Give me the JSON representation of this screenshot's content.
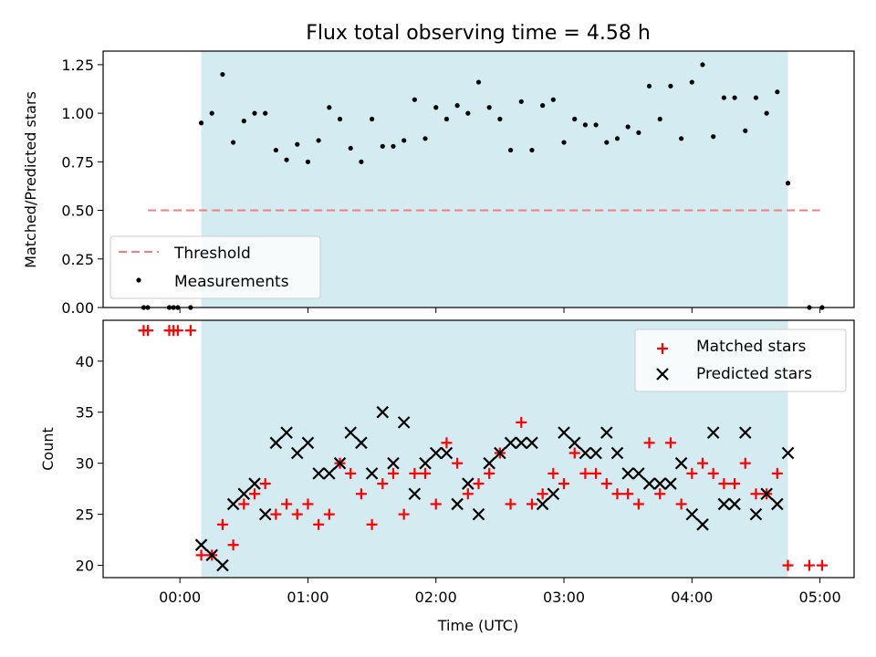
{
  "chart_data": [
    {
      "type": "scatter",
      "title": "Flux total observing time = 4.58 h",
      "xlabel": "",
      "ylabel": "Matched/Predicted stars",
      "xlim_minutes": [
        -36,
        316
      ],
      "ylim": [
        0.0,
        1.32
      ],
      "yticks": [
        0.0,
        0.25,
        0.5,
        0.75,
        1.0,
        1.25
      ],
      "ytick_labels": [
        "0.00",
        "0.25",
        "0.50",
        "0.75",
        "1.00",
        "1.25"
      ],
      "observing_window_minutes": [
        10,
        285
      ],
      "window_color": "#d4ebf1",
      "legend_position": "lower left",
      "threshold": {
        "name": "Threshold",
        "value": 0.5,
        "x_range_minutes": [
          -15,
          300
        ],
        "color": "#f08080",
        "style": "dashed"
      },
      "series": [
        {
          "name": "Measurements",
          "color": "#000000",
          "marker": "dot",
          "x_minutes": [
            -17,
            -15,
            -5,
            -3,
            -1,
            5,
            10,
            15,
            20,
            25,
            30,
            35,
            40,
            45,
            50,
            55,
            60,
            65,
            70,
            75,
            80,
            85,
            90,
            95,
            100,
            105,
            110,
            115,
            120,
            125,
            130,
            135,
            140,
            145,
            150,
            155,
            160,
            165,
            170,
            175,
            180,
            185,
            190,
            195,
            200,
            205,
            210,
            215,
            220,
            225,
            230,
            235,
            240,
            245,
            250,
            255,
            260,
            265,
            270,
            275,
            280,
            285,
            295,
            301
          ],
          "values": [
            0,
            0,
            0,
            0,
            0,
            0,
            0.95,
            1.0,
            1.2,
            0.85,
            0.96,
            1.0,
            1.0,
            0.81,
            0.76,
            0.84,
            0.75,
            0.86,
            1.03,
            0.97,
            0.82,
            0.75,
            0.97,
            0.83,
            0.83,
            0.86,
            1.07,
            0.87,
            1.03,
            0.97,
            1.04,
            1.0,
            1.16,
            1.03,
            0.97,
            0.81,
            1.06,
            0.81,
            1.04,
            1.07,
            0.85,
            0.97,
            0.94,
            0.94,
            0.85,
            0.87,
            0.93,
            0.9,
            1.14,
            0.97,
            1.14,
            0.87,
            1.16,
            1.25,
            0.88,
            1.08,
            1.08,
            0.91,
            1.08,
            1.0,
            1.11,
            0.64,
            0,
            0
          ]
        }
      ]
    },
    {
      "type": "scatter",
      "title": "",
      "xlabel": "Time (UTC)",
      "ylabel": "Count",
      "xlim_minutes": [
        -36,
        316
      ],
      "x_tick_minutes": [
        0,
        60,
        120,
        180,
        240,
        300
      ],
      "x_tick_labels": [
        "00:00",
        "01:00",
        "02:00",
        "03:00",
        "04:00",
        "05:00"
      ],
      "ylim": [
        18.8,
        44.0
      ],
      "yticks": [
        20,
        25,
        30,
        35,
        40
      ],
      "ytick_labels": [
        "20",
        "25",
        "30",
        "35",
        "40"
      ],
      "observing_window_minutes": [
        10,
        285
      ],
      "window_color": "#d4ebf1",
      "legend_position": "upper right",
      "series": [
        {
          "name": "Matched stars",
          "color": "#ff0000",
          "marker": "plus",
          "x_minutes": [
            -17,
            -15,
            -5,
            -3,
            -1,
            5,
            10,
            15,
            20,
            25,
            30,
            35,
            40,
            45,
            50,
            55,
            60,
            65,
            70,
            75,
            80,
            85,
            90,
            95,
            100,
            105,
            110,
            115,
            120,
            125,
            130,
            135,
            140,
            145,
            150,
            155,
            160,
            165,
            170,
            175,
            180,
            185,
            190,
            195,
            200,
            205,
            210,
            215,
            220,
            225,
            230,
            235,
            240,
            245,
            250,
            255,
            260,
            265,
            270,
            275,
            280,
            285,
            295,
            301
          ],
          "values": [
            43,
            43,
            43,
            43,
            43,
            43,
            21,
            21,
            24,
            22,
            26,
            27,
            28,
            25,
            26,
            25,
            26,
            24,
            25,
            30,
            29,
            27,
            24,
            28,
            29,
            25,
            29,
            29,
            26,
            32,
            30,
            27,
            28,
            29,
            31,
            26,
            34,
            26,
            27,
            29,
            28,
            31,
            29,
            29,
            28,
            27,
            27,
            26,
            32,
            27,
            32,
            26,
            29,
            30,
            29,
            28,
            28,
            30,
            27,
            27,
            29,
            20,
            20,
            20
          ]
        },
        {
          "name": "Predicted stars",
          "color": "#000000",
          "marker": "x",
          "x_minutes": [
            10,
            15,
            20,
            25,
            30,
            35,
            40,
            45,
            50,
            55,
            60,
            65,
            70,
            75,
            80,
            85,
            90,
            95,
            100,
            105,
            110,
            115,
            120,
            125,
            130,
            135,
            140,
            145,
            150,
            155,
            160,
            165,
            170,
            175,
            180,
            185,
            190,
            195,
            200,
            205,
            210,
            215,
            220,
            225,
            230,
            235,
            240,
            245,
            250,
            255,
            260,
            265,
            270,
            275,
            280,
            285
          ],
          "values": [
            22,
            21,
            20,
            26,
            27,
            28,
            25,
            32,
            33,
            31,
            32,
            29,
            29,
            30,
            33,
            32,
            29,
            35,
            30,
            34,
            27,
            30,
            31,
            31,
            26,
            28,
            25,
            30,
            31,
            32,
            32,
            32,
            26,
            27,
            33,
            32,
            31,
            31,
            33,
            31,
            29,
            29,
            28,
            28,
            28,
            30,
            25,
            24,
            33,
            26,
            26,
            33,
            25,
            27,
            26,
            31
          ]
        }
      ]
    }
  ]
}
